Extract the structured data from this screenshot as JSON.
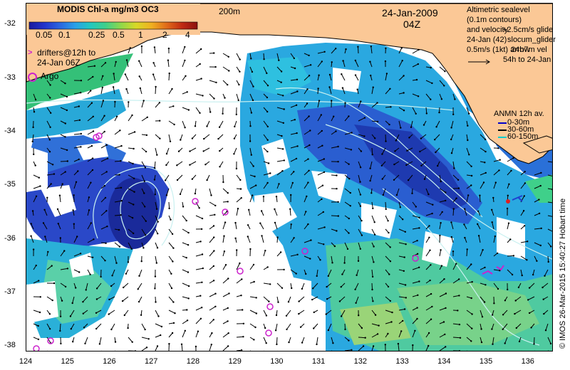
{
  "colorbar": {
    "title": "MODIS Chl-a mg/m3 OC3",
    "ticks": [
      "0.05",
      "0.1",
      "0.25",
      "0.5",
      "1",
      "2",
      "4"
    ],
    "colors": [
      "#1a1a9e",
      "#2233cc",
      "#2a66e0",
      "#2aa0e8",
      "#22c8c0",
      "#3fd08a",
      "#8fd84a",
      "#d8d826",
      "#f0b020",
      "#e06a1a",
      "#c02a12",
      "#8a1010"
    ]
  },
  "depth_label": "200m",
  "date": "24-Jan-2009",
  "time": "04Z",
  "legend_right": {
    "line1": "Altimetric sealevel",
    "line2": "(0.1m contours)",
    "line3": "and velocity",
    "line4": "24-Jan (42)",
    "line5": "0.5m/s (1kt) arrow",
    "overlap1": "+2.5cm/s glide",
    "overlap2": "slocum_glider",
    "overlap3": "24h7m vel",
    "overlap4": "54h to 24-Jan"
  },
  "legend_left": {
    "drifters_line1": "drifters@12h to",
    "drifters_line2": "24-Jan 06Z",
    "argo": "Argo"
  },
  "anmn": {
    "title": "ANMN 12h av.",
    "items": [
      "0-30m",
      "30-60m",
      "60-150m"
    ],
    "colors": [
      "#0000cc",
      "#000000",
      "#00cccc"
    ]
  },
  "credit": "© IMOS 26-Mar-2015 15:40:27 Hobart time",
  "axes": {
    "x_ticks": [
      "124",
      "125",
      "126",
      "127",
      "128",
      "129",
      "130",
      "131",
      "132",
      "133",
      "134",
      "135",
      "136"
    ],
    "y_ticks": [
      "-32",
      "-33",
      "-34",
      "-35",
      "-36",
      "-37",
      "-38"
    ],
    "lon_range": [
      124,
      136.6
    ],
    "lat_range": [
      -38.1,
      -31.6
    ]
  },
  "colors": {
    "land": "#fbc896",
    "coast": "#000000",
    "argo": "#cc22cc",
    "contour": "#c8f0f0"
  }
}
